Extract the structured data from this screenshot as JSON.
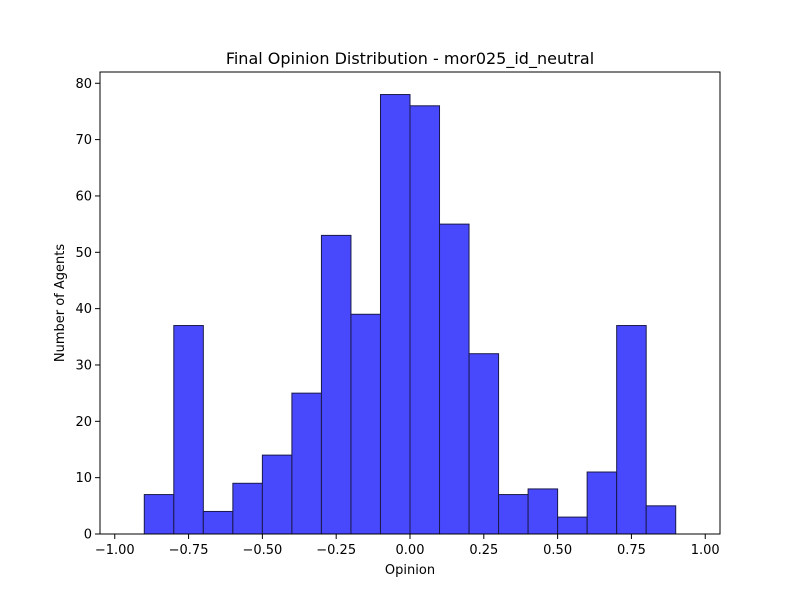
{
  "chart_data": {
    "type": "bar",
    "title": "Final Opinion Distribution - mor025_id_neutral",
    "xlabel": "Opinion",
    "ylabel": "Number of Agents",
    "xlim": [
      -1.05,
      1.05
    ],
    "ylim": [
      0,
      82
    ],
    "grid": false,
    "x_ticks": [
      -1.0,
      -0.75,
      -0.5,
      -0.25,
      0.0,
      0.25,
      0.5,
      0.75,
      1.0
    ],
    "x_tick_labels": [
      "−1.00",
      "−0.75",
      "−0.50",
      "−0.25",
      "0.00",
      "0.25",
      "0.50",
      "0.75",
      "1.00"
    ],
    "y_ticks": [
      0,
      10,
      20,
      30,
      40,
      50,
      60,
      70,
      80
    ],
    "y_tick_labels": [
      "0",
      "10",
      "20",
      "30",
      "40",
      "50",
      "60",
      "70",
      "80"
    ],
    "bin_edges": [
      -0.9,
      -0.8,
      -0.7,
      -0.6,
      -0.5,
      -0.4,
      -0.3,
      -0.2,
      -0.1,
      0.0,
      0.1,
      0.2,
      0.3,
      0.4,
      0.5,
      0.6,
      0.7,
      0.8,
      0.9
    ],
    "values": [
      7,
      37,
      4,
      9,
      14,
      25,
      53,
      39,
      78,
      76,
      55,
      32,
      7,
      8,
      3,
      11,
      37,
      5
    ],
    "bar_color": "#4848fc",
    "edge_color": "#1a1a4a"
  }
}
